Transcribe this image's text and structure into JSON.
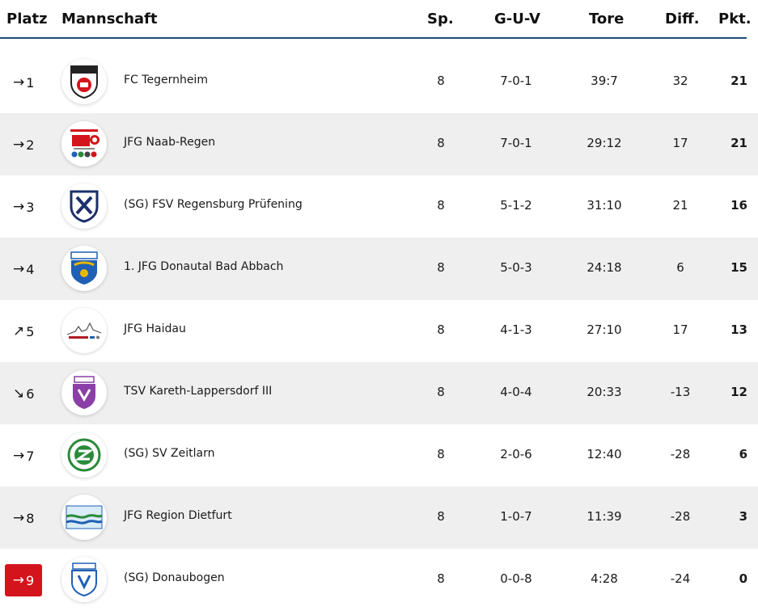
{
  "header": {
    "platz": "Platz",
    "mannschaft": "Mannschaft",
    "sp": "Sp.",
    "guv": "G-U-V",
    "tore": "Tore",
    "diff": "Diff.",
    "pkt": "Pkt."
  },
  "colors": {
    "accent_line": "#1f4e79",
    "relegation": "#d4141c",
    "row_alt": "#efefef"
  },
  "rows": [
    {
      "rank": "1",
      "trend_icon": "arrow-right-icon",
      "trend": "→",
      "team": "FC Tegernheim",
      "sp": "8",
      "guv": "7-0-1",
      "tore": "39:7",
      "diff": "32",
      "pkt": "21"
    },
    {
      "rank": "2",
      "trend_icon": "arrow-right-icon",
      "trend": "→",
      "team": "JFG Naab-Regen",
      "sp": "8",
      "guv": "7-0-1",
      "tore": "29:12",
      "diff": "17",
      "pkt": "21"
    },
    {
      "rank": "3",
      "trend_icon": "arrow-right-icon",
      "trend": "→",
      "team": "(SG) FSV Regensburg Prüfening",
      "sp": "8",
      "guv": "5-1-2",
      "tore": "31:10",
      "diff": "21",
      "pkt": "16"
    },
    {
      "rank": "4",
      "trend_icon": "arrow-right-icon",
      "trend": "→",
      "team": "1. JFG Donautal Bad Abbach",
      "sp": "8",
      "guv": "5-0-3",
      "tore": "24:18",
      "diff": "6",
      "pkt": "15"
    },
    {
      "rank": "5",
      "trend_icon": "arrow-up-right-icon",
      "trend": "↗",
      "team": "JFG Haidau",
      "sp": "8",
      "guv": "4-1-3",
      "tore": "27:10",
      "diff": "17",
      "pkt": "13"
    },
    {
      "rank": "6",
      "trend_icon": "arrow-down-right-icon",
      "trend": "↘",
      "team": "TSV Kareth-Lappersdorf III",
      "sp": "8",
      "guv": "4-0-4",
      "tore": "20:33",
      "diff": "-13",
      "pkt": "12"
    },
    {
      "rank": "7",
      "trend_icon": "arrow-right-icon",
      "trend": "→",
      "team": "(SG) SV Zeitlarn",
      "sp": "8",
      "guv": "2-0-6",
      "tore": "12:40",
      "diff": "-28",
      "pkt": "6"
    },
    {
      "rank": "8",
      "trend_icon": "arrow-right-icon",
      "trend": "→",
      "team": "JFG Region Dietfurt",
      "sp": "8",
      "guv": "1-0-7",
      "tore": "11:39",
      "diff": "-28",
      "pkt": "3"
    },
    {
      "rank": "9",
      "trend_icon": "arrow-right-icon",
      "trend": "→",
      "team": "(SG) Donaubogen",
      "sp": "8",
      "guv": "0-0-8",
      "tore": "4:28",
      "diff": "-24",
      "pkt": "0"
    }
  ]
}
